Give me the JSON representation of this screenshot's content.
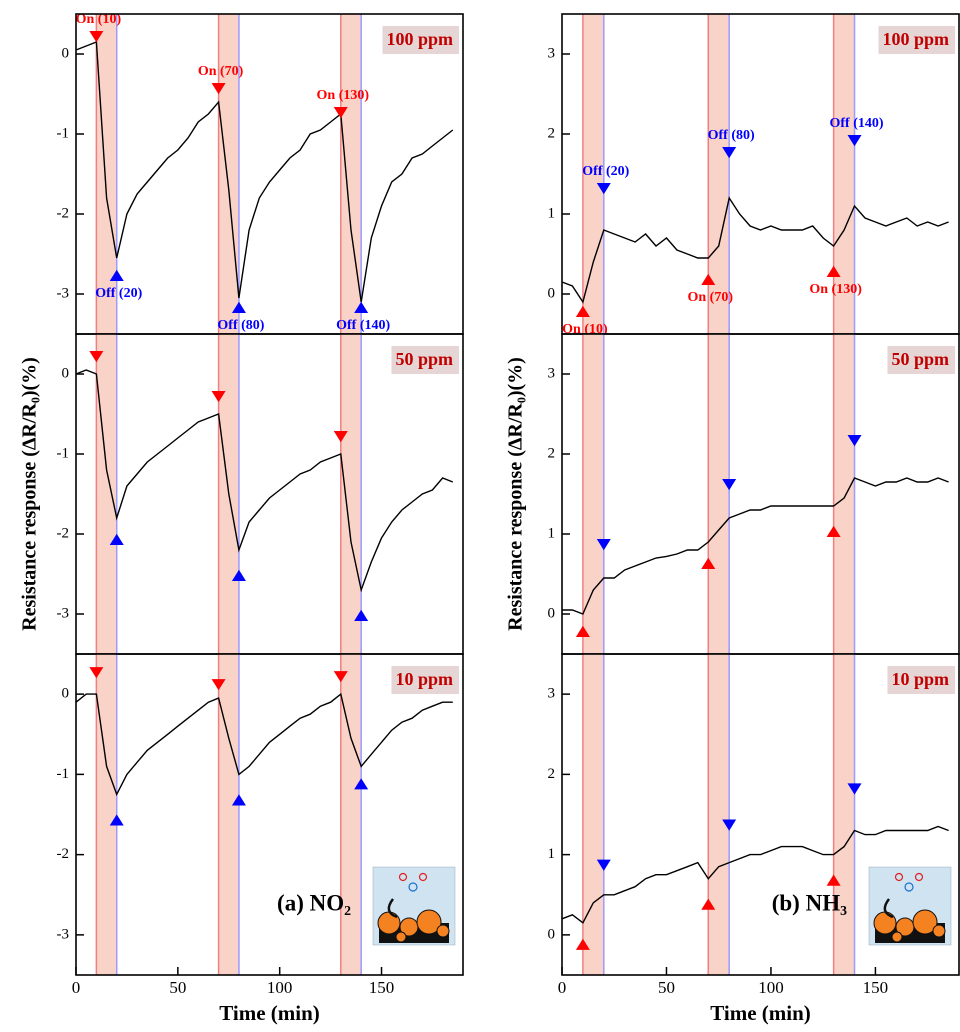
{
  "chart_data": [
    {
      "type": "line",
      "label": "100 ppm",
      "color": "#000000",
      "xlim": [
        0,
        190
      ],
      "ylim": [
        -3.5,
        0.5
      ],
      "yticks": [
        -3,
        -2,
        -1,
        0
      ],
      "x": [
        0,
        5,
        10,
        15,
        20,
        25,
        30,
        35,
        40,
        45,
        50,
        55,
        60,
        65,
        70,
        75,
        80,
        85,
        90,
        95,
        100,
        105,
        110,
        115,
        120,
        125,
        130,
        135,
        140,
        145,
        150,
        155,
        160,
        165,
        170,
        175,
        180,
        185
      ],
      "values": [
        0.05,
        0.1,
        0.15,
        -1.8,
        -2.55,
        -2.0,
        -1.75,
        -1.6,
        -1.45,
        -1.3,
        -1.2,
        -1.05,
        -0.85,
        -0.75,
        -0.6,
        -1.7,
        -3.05,
        -2.2,
        -1.8,
        -1.6,
        -1.45,
        -1.3,
        -1.2,
        -1.0,
        -0.95,
        -0.85,
        -0.75,
        -2.2,
        -3.1,
        -2.3,
        -1.9,
        -1.6,
        -1.5,
        -1.3,
        -1.25,
        -1.15,
        -1.05,
        -0.95
      ],
      "exposures": [
        [
          10,
          20
        ],
        [
          70,
          80
        ],
        [
          130,
          140
        ]
      ],
      "band_color": "#f9d3c8",
      "edge_colors": [
        "#f08080",
        "#9a9aff"
      ],
      "markers": [
        {
          "x": 10,
          "y": 0.2,
          "label": "On (10)",
          "color": "#ff0000",
          "shape": "down"
        },
        {
          "x": 20,
          "y": -2.75,
          "label": "Off (20)",
          "color": "#0000ff",
          "shape": "up"
        },
        {
          "x": 70,
          "y": -0.45,
          "label": "On (70)",
          "color": "#ff0000",
          "shape": "down"
        },
        {
          "x": 80,
          "y": -3.15,
          "label": "Off (80)",
          "color": "#0000ff",
          "shape": "up"
        },
        {
          "x": 130,
          "y": -0.75,
          "label": "On (130)",
          "color": "#ff0000",
          "shape": "down"
        },
        {
          "x": 140,
          "y": -3.15,
          "label": "Off (140)",
          "color": "#0000ff",
          "shape": "up"
        }
      ]
    },
    {
      "type": "line",
      "label": "50 ppm",
      "color": "#000000",
      "xlim": [
        0,
        190
      ],
      "ylim": [
        -3.5,
        0.5
      ],
      "yticks": [
        -3,
        -2,
        -1,
        0
      ],
      "ylabel": "Resistance response (ΔR/R₀)(%)",
      "x": [
        0,
        5,
        10,
        15,
        20,
        25,
        30,
        35,
        40,
        45,
        50,
        55,
        60,
        65,
        70,
        75,
        80,
        85,
        90,
        95,
        100,
        105,
        110,
        115,
        120,
        125,
        130,
        135,
        140,
        145,
        150,
        155,
        160,
        165,
        170,
        175,
        180,
        185
      ],
      "values": [
        0,
        0.05,
        0.0,
        -1.2,
        -1.8,
        -1.4,
        -1.25,
        -1.1,
        -1.0,
        -0.9,
        -0.8,
        -0.7,
        -0.6,
        -0.55,
        -0.5,
        -1.5,
        -2.2,
        -1.85,
        -1.7,
        -1.55,
        -1.45,
        -1.35,
        -1.25,
        -1.2,
        -1.1,
        -1.05,
        -1.0,
        -2.1,
        -2.7,
        -2.35,
        -2.05,
        -1.85,
        -1.7,
        -1.6,
        -1.5,
        -1.45,
        -1.3,
        -1.35
      ],
      "exposures": [
        [
          10,
          20
        ],
        [
          70,
          80
        ],
        [
          130,
          140
        ]
      ],
      "band_color": "#f9d3c8",
      "edge_colors": [
        "#f08080",
        "#9a9aff"
      ],
      "markers": [
        {
          "x": 10,
          "y": 0.2,
          "color": "#ff0000",
          "shape": "down"
        },
        {
          "x": 20,
          "y": -2.05,
          "color": "#0000ff",
          "shape": "up"
        },
        {
          "x": 70,
          "y": -0.3,
          "color": "#ff0000",
          "shape": "down"
        },
        {
          "x": 80,
          "y": -2.5,
          "color": "#0000ff",
          "shape": "up"
        },
        {
          "x": 130,
          "y": -0.8,
          "color": "#ff0000",
          "shape": "down"
        },
        {
          "x": 140,
          "y": -3.0,
          "color": "#0000ff",
          "shape": "up"
        }
      ]
    },
    {
      "type": "line",
      "label": "10 ppm",
      "color": "#000000",
      "xlim": [
        0,
        190
      ],
      "ylim": [
        -3.5,
        0.5
      ],
      "yticks": [
        -3,
        -2,
        -1,
        0
      ],
      "xticks": [
        0,
        50,
        100,
        150
      ],
      "xlabel": "Time (min)",
      "panel_label": "(a) NO₂",
      "x": [
        0,
        5,
        10,
        15,
        20,
        25,
        30,
        35,
        40,
        45,
        50,
        55,
        60,
        65,
        70,
        75,
        80,
        85,
        90,
        95,
        100,
        105,
        110,
        115,
        120,
        125,
        130,
        135,
        140,
        145,
        150,
        155,
        160,
        165,
        170,
        175,
        180,
        185
      ],
      "values": [
        -0.1,
        0.0,
        0.0,
        -0.9,
        -1.25,
        -1.0,
        -0.85,
        -0.7,
        -0.6,
        -0.5,
        -0.4,
        -0.3,
        -0.2,
        -0.1,
        -0.05,
        -0.55,
        -1.0,
        -0.9,
        -0.75,
        -0.6,
        -0.5,
        -0.4,
        -0.3,
        -0.25,
        -0.15,
        -0.1,
        0.0,
        -0.55,
        -0.9,
        -0.75,
        -0.6,
        -0.45,
        -0.35,
        -0.3,
        -0.2,
        -0.15,
        -0.1,
        -0.1
      ],
      "exposures": [
        [
          10,
          20
        ],
        [
          70,
          80
        ],
        [
          130,
          140
        ]
      ],
      "band_color": "#f9d3c8",
      "edge_colors": [
        "#f08080",
        "#9a9aff"
      ],
      "markers": [
        {
          "x": 10,
          "y": 0.25,
          "color": "#ff0000",
          "shape": "down"
        },
        {
          "x": 20,
          "y": -1.55,
          "color": "#0000ff",
          "shape": "up"
        },
        {
          "x": 70,
          "y": 0.1,
          "color": "#ff0000",
          "shape": "down"
        },
        {
          "x": 80,
          "y": -1.3,
          "color": "#0000ff",
          "shape": "up"
        },
        {
          "x": 130,
          "y": 0.2,
          "color": "#ff0000",
          "shape": "down"
        },
        {
          "x": 140,
          "y": -1.1,
          "color": "#0000ff",
          "shape": "up"
        }
      ]
    },
    {
      "type": "line",
      "label": "100 ppm",
      "color": "#000000",
      "xlim": [
        0,
        190
      ],
      "ylim": [
        -0.5,
        3.5
      ],
      "yticks": [
        0,
        1,
        2,
        3
      ],
      "x": [
        0,
        5,
        10,
        15,
        20,
        25,
        30,
        35,
        40,
        45,
        50,
        55,
        60,
        65,
        70,
        75,
        80,
        85,
        90,
        95,
        100,
        105,
        110,
        115,
        120,
        125,
        130,
        135,
        140,
        145,
        150,
        155,
        160,
        165,
        170,
        175,
        180,
        185
      ],
      "values": [
        0.15,
        0.1,
        -0.1,
        0.4,
        0.8,
        0.75,
        0.7,
        0.65,
        0.75,
        0.6,
        0.7,
        0.55,
        0.5,
        0.45,
        0.45,
        0.6,
        1.2,
        1.0,
        0.85,
        0.8,
        0.85,
        0.8,
        0.8,
        0.8,
        0.85,
        0.7,
        0.6,
        0.8,
        1.1,
        0.95,
        0.9,
        0.85,
        0.9,
        0.95,
        0.85,
        0.9,
        0.85,
        0.9
      ],
      "exposures": [
        [
          10,
          20
        ],
        [
          70,
          80
        ],
        [
          130,
          140
        ]
      ],
      "band_color": "#f9d3c8",
      "edge_colors": [
        "#f08080",
        "#9a9aff"
      ],
      "markers": [
        {
          "x": 10,
          "y": -0.2,
          "label": "On (10)",
          "color": "#ff0000",
          "shape": "up"
        },
        {
          "x": 20,
          "y": 1.3,
          "label": "Off (20)",
          "color": "#0000ff",
          "shape": "down"
        },
        {
          "x": 70,
          "y": 0.2,
          "label": "On (70)",
          "color": "#ff0000",
          "shape": "up"
        },
        {
          "x": 80,
          "y": 1.75,
          "label": "Off (80)",
          "color": "#0000ff",
          "shape": "down"
        },
        {
          "x": 130,
          "y": 0.3,
          "label": "On (130)",
          "color": "#ff0000",
          "shape": "up"
        },
        {
          "x": 140,
          "y": 1.9,
          "label": "Off (140)",
          "color": "#0000ff",
          "shape": "down"
        }
      ]
    },
    {
      "type": "line",
      "label": "50 ppm",
      "color": "#000000",
      "xlim": [
        0,
        190
      ],
      "ylim": [
        -0.5,
        3.5
      ],
      "yticks": [
        0,
        1,
        2,
        3
      ],
      "ylabel": "Resistance response (ΔR/R₀)(%)",
      "x": [
        0,
        5,
        10,
        15,
        20,
        25,
        30,
        35,
        40,
        45,
        50,
        55,
        60,
        65,
        70,
        75,
        80,
        85,
        90,
        95,
        100,
        105,
        110,
        115,
        120,
        125,
        130,
        135,
        140,
        145,
        150,
        155,
        160,
        165,
        170,
        175,
        180,
        185
      ],
      "values": [
        0.05,
        0.05,
        0.0,
        0.3,
        0.45,
        0.45,
        0.55,
        0.6,
        0.65,
        0.7,
        0.72,
        0.75,
        0.8,
        0.8,
        0.9,
        1.05,
        1.2,
        1.25,
        1.3,
        1.3,
        1.35,
        1.35,
        1.35,
        1.35,
        1.35,
        1.35,
        1.35,
        1.45,
        1.7,
        1.65,
        1.6,
        1.65,
        1.65,
        1.7,
        1.65,
        1.65,
        1.7,
        1.65
      ],
      "exposures": [
        [
          10,
          20
        ],
        [
          70,
          80
        ],
        [
          130,
          140
        ]
      ],
      "band_color": "#f9d3c8",
      "edge_colors": [
        "#f08080",
        "#9a9aff"
      ],
      "markers": [
        {
          "x": 10,
          "y": -0.2,
          "color": "#ff0000",
          "shape": "up"
        },
        {
          "x": 20,
          "y": 0.85,
          "color": "#0000ff",
          "shape": "down"
        },
        {
          "x": 70,
          "y": 0.65,
          "color": "#ff0000",
          "shape": "up"
        },
        {
          "x": 80,
          "y": 1.6,
          "color": "#0000ff",
          "shape": "down"
        },
        {
          "x": 130,
          "y": 1.05,
          "color": "#ff0000",
          "shape": "up"
        },
        {
          "x": 140,
          "y": 2.15,
          "color": "#0000ff",
          "shape": "down"
        }
      ]
    },
    {
      "type": "line",
      "label": "10 ppm",
      "color": "#000000",
      "xlim": [
        0,
        190
      ],
      "ylim": [
        -0.5,
        3.5
      ],
      "yticks": [
        0,
        1,
        2,
        3
      ],
      "xticks": [
        0,
        50,
        100,
        150
      ],
      "xlabel": "Time (min)",
      "panel_label": "(b) NH₃",
      "x": [
        0,
        5,
        10,
        15,
        20,
        25,
        30,
        35,
        40,
        45,
        50,
        55,
        60,
        65,
        70,
        75,
        80,
        85,
        90,
        95,
        100,
        105,
        110,
        115,
        120,
        125,
        130,
        135,
        140,
        145,
        150,
        155,
        160,
        165,
        170,
        175,
        180,
        185
      ],
      "values": [
        0.2,
        0.25,
        0.15,
        0.4,
        0.5,
        0.5,
        0.55,
        0.6,
        0.7,
        0.75,
        0.75,
        0.8,
        0.85,
        0.9,
        0.7,
        0.85,
        0.9,
        0.95,
        1.0,
        1.0,
        1.05,
        1.1,
        1.1,
        1.1,
        1.05,
        1.0,
        1.0,
        1.1,
        1.3,
        1.25,
        1.25,
        1.3,
        1.3,
        1.3,
        1.3,
        1.3,
        1.35,
        1.3
      ],
      "exposures": [
        [
          10,
          20
        ],
        [
          70,
          80
        ],
        [
          130,
          140
        ]
      ],
      "band_color": "#f9d3c8",
      "edge_colors": [
        "#f08080",
        "#9a9aff"
      ],
      "markers": [
        {
          "x": 10,
          "y": -0.1,
          "color": "#ff0000",
          "shape": "up"
        },
        {
          "x": 20,
          "y": 0.85,
          "color": "#0000ff",
          "shape": "down"
        },
        {
          "x": 70,
          "y": 0.4,
          "color": "#ff0000",
          "shape": "up"
        },
        {
          "x": 80,
          "y": 1.35,
          "color": "#0000ff",
          "shape": "down"
        },
        {
          "x": 130,
          "y": 0.7,
          "color": "#ff0000",
          "shape": "up"
        },
        {
          "x": 140,
          "y": 1.8,
          "color": "#0000ff",
          "shape": "down"
        }
      ]
    }
  ]
}
